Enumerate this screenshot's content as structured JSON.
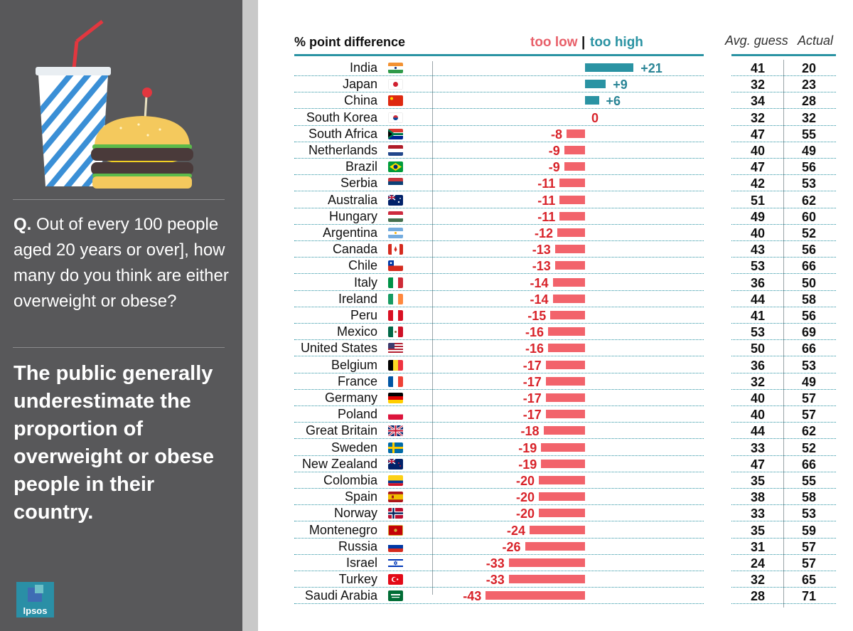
{
  "sidebar": {
    "question_prefix": "Q.",
    "question_text": "Out of every 100 people aged 20 years or over], how many do you think are either overweight or obese?",
    "headline": "The public generally underestimate the proportion of overweight or obese people in their country.",
    "logo_text": "Ipsos"
  },
  "header": {
    "diff_label": "% point difference",
    "too_low": "too low",
    "separator": "|",
    "too_high": "too high",
    "avg_label": "Avg. guess",
    "actual_label": "Actual"
  },
  "colors": {
    "negative": "#f2636b",
    "positive": "#2a93a3",
    "sidebar": "#58585a"
  },
  "chart_data": {
    "type": "bar",
    "title": "% point difference",
    "orientation": "horizontal",
    "categories": [
      "India",
      "Japan",
      "China",
      "South Korea",
      "South Africa",
      "Netherlands",
      "Brazil",
      "Serbia",
      "Australia",
      "Hungary",
      "Argentina",
      "Canada",
      "Chile",
      "Italy",
      "Ireland",
      "Peru",
      "Mexico",
      "United States",
      "Belgium",
      "France",
      "Germany",
      "Poland",
      "Great Britain",
      "Sweden",
      "New Zealand",
      "Colombia",
      "Spain",
      "Norway",
      "Montenegro",
      "Russia",
      "Israel",
      "Turkey",
      "Saudi Arabia"
    ],
    "series": [
      {
        "name": "% point difference",
        "values": [
          21,
          9,
          6,
          0,
          -8,
          -9,
          -9,
          -11,
          -11,
          -11,
          -12,
          -13,
          -13,
          -14,
          -14,
          -15,
          -16,
          -16,
          -17,
          -17,
          -17,
          -17,
          -18,
          -19,
          -19,
          -20,
          -20,
          -20,
          -24,
          -26,
          -33,
          -33,
          -43
        ]
      },
      {
        "name": "Avg. guess",
        "values": [
          41,
          32,
          34,
          32,
          47,
          40,
          47,
          42,
          51,
          49,
          40,
          43,
          53,
          36,
          44,
          41,
          53,
          50,
          36,
          32,
          40,
          40,
          44,
          33,
          47,
          35,
          38,
          33,
          35,
          31,
          24,
          32,
          28
        ]
      },
      {
        "name": "Actual",
        "values": [
          20,
          23,
          28,
          32,
          55,
          49,
          56,
          53,
          62,
          60,
          52,
          56,
          66,
          50,
          58,
          56,
          69,
          66,
          53,
          49,
          57,
          57,
          62,
          52,
          66,
          55,
          58,
          53,
          59,
          57,
          57,
          65,
          71
        ]
      }
    ],
    "value_labels": [
      "+21",
      "+9",
      "+6",
      "0",
      "-8",
      "-9",
      "-9",
      "-11",
      "-11",
      "-11",
      "-12",
      "-13",
      "-13",
      "-14",
      "-14",
      "-15",
      "-16",
      "-16",
      "-17",
      "-17",
      "-17",
      "-17",
      "-18",
      "-19",
      "-19",
      "-20",
      "-20",
      "-20",
      "-24",
      "-26",
      "-33",
      "-33",
      "-43"
    ],
    "legend": [
      "too low",
      "too high"
    ],
    "xlim": [
      -45,
      25
    ]
  },
  "flags": [
    "india",
    "japan",
    "china",
    "south-korea",
    "south-africa",
    "netherlands",
    "brazil",
    "serbia",
    "australia",
    "hungary",
    "argentina",
    "canada",
    "chile",
    "italy",
    "ireland",
    "peru",
    "mexico",
    "united-states",
    "belgium",
    "france",
    "germany",
    "poland",
    "great-britain",
    "sweden",
    "new-zealand",
    "colombia",
    "spain",
    "norway",
    "montenegro",
    "russia",
    "israel",
    "turkey",
    "saudi-arabia"
  ]
}
